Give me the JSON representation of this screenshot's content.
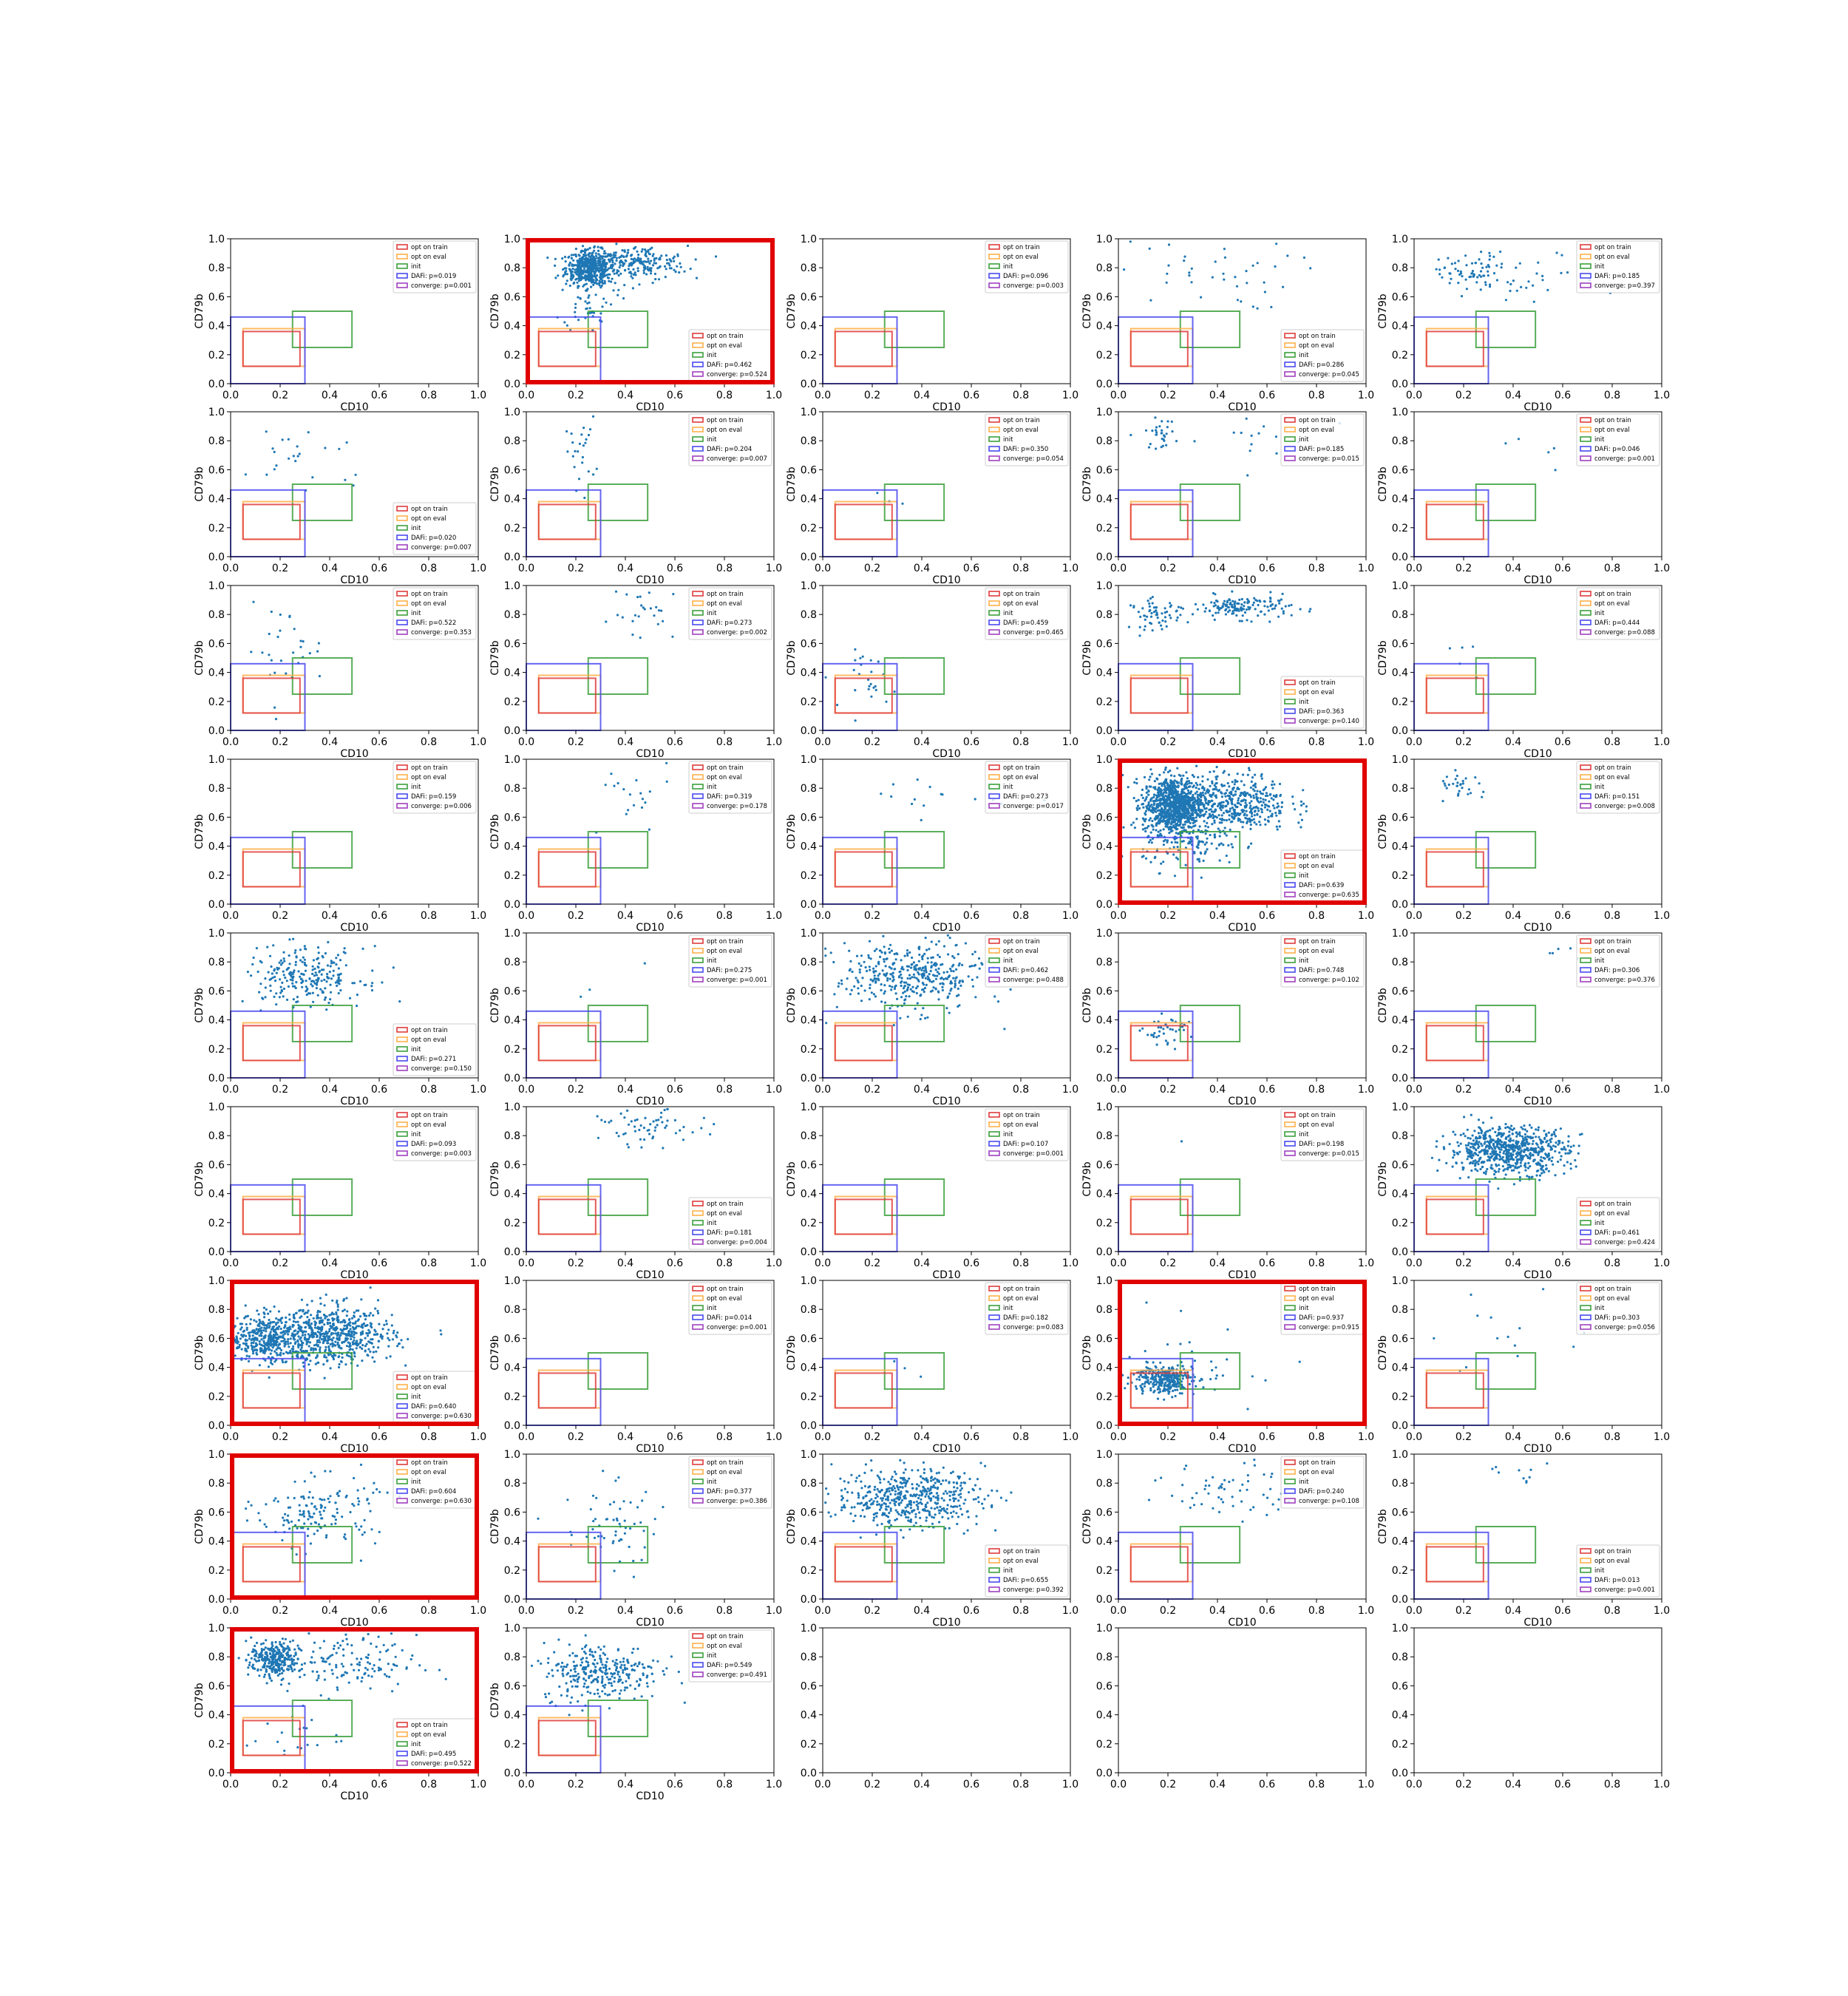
{
  "figure": {
    "background": "#ffffff"
  },
  "colors": {
    "scatter": "#1f77b4",
    "opt_on_train": "#e03c3c",
    "opt_on_eval": "#ffb04a",
    "init": "#3ca03c",
    "dafi": "#4a4af0",
    "converge": "#a040c0",
    "highlight": "#e00000"
  },
  "legend_labels": {
    "opt_on_train": "opt on train",
    "opt_on_eval": "opt on eval",
    "init": "init",
    "dafi_prefix": "DAFi: p=",
    "converge_prefix": "converge: p="
  },
  "chart_data": {
    "type": "scatter",
    "rows": 9,
    "cols": 5,
    "xlabel": "CD10",
    "ylabel": "CD79b",
    "xlim": [
      0,
      1
    ],
    "ylim": [
      0,
      1
    ],
    "ticks": [
      "0.0",
      "0.2",
      "0.4",
      "0.6",
      "0.8",
      "1.0"
    ],
    "gates": {
      "opt_on_train": [
        0.05,
        0.12,
        0.28,
        0.36
      ],
      "opt_on_eval": [
        0.05,
        0.12,
        0.3,
        0.38
      ],
      "init": [
        0.25,
        0.25,
        0.49,
        0.5
      ],
      "dafi": [
        0.0,
        0.0,
        0.3,
        0.46
      ]
    },
    "panels": [
      {
        "dafi": "0.019",
        "converge": "0.001",
        "legend": "top",
        "highlight": false,
        "clusters": []
      },
      {
        "dafi": "0.462",
        "converge": "0.524",
        "legend": "bottom",
        "highlight": true,
        "clusters": [
          [
            0.26,
            0.8,
            0.05,
            0.06,
            500
          ],
          [
            0.45,
            0.83,
            0.1,
            0.06,
            200
          ],
          [
            0.25,
            0.6,
            0.05,
            0.12,
            60
          ]
        ]
      },
      {
        "dafi": "0.096",
        "converge": "0.003",
        "legend": "top",
        "highlight": false,
        "clusters": []
      },
      {
        "dafi": "0.286",
        "converge": "0.045",
        "legend": "bottom",
        "highlight": false,
        "clusters": [
          [
            0.35,
            0.75,
            0.18,
            0.12,
            40
          ]
        ]
      },
      {
        "dafi": "0.185",
        "converge": "0.397",
        "legend": "top",
        "highlight": false,
        "clusters": [
          [
            0.22,
            0.76,
            0.06,
            0.07,
            60
          ],
          [
            0.45,
            0.72,
            0.15,
            0.1,
            35
          ]
        ]
      },
      {
        "dafi": "0.020",
        "converge": "0.007",
        "legend": "bottom",
        "highlight": false,
        "clusters": [
          [
            0.3,
            0.7,
            0.15,
            0.15,
            25
          ]
        ]
      },
      {
        "dafi": "0.204",
        "converge": "0.007",
        "legend": "top",
        "highlight": false,
        "clusters": [
          [
            0.22,
            0.72,
            0.03,
            0.12,
            25
          ]
        ]
      },
      {
        "dafi": "0.350",
        "converge": "0.054",
        "legend": "top",
        "highlight": false,
        "clusters": [
          [
            0.25,
            0.4,
            0.05,
            0.05,
            3
          ]
        ]
      },
      {
        "dafi": "0.185",
        "converge": "0.015",
        "legend": "top",
        "highlight": false,
        "clusters": [
          [
            0.17,
            0.85,
            0.03,
            0.05,
            30
          ],
          [
            0.5,
            0.8,
            0.15,
            0.1,
            15
          ]
        ]
      },
      {
        "dafi": "0.046",
        "converge": "0.001",
        "legend": "top",
        "highlight": false,
        "clusters": [
          [
            0.5,
            0.8,
            0.2,
            0.1,
            5
          ]
        ]
      },
      {
        "dafi": "0.522",
        "converge": "0.353",
        "legend": "top",
        "highlight": false,
        "clusters": [
          [
            0.22,
            0.55,
            0.08,
            0.15,
            30
          ]
        ]
      },
      {
        "dafi": "0.273",
        "converge": "0.002",
        "legend": "top",
        "highlight": false,
        "clusters": [
          [
            0.5,
            0.8,
            0.08,
            0.1,
            25
          ]
        ]
      },
      {
        "dafi": "0.459",
        "converge": "0.465",
        "legend": "top",
        "highlight": false,
        "clusters": [
          [
            0.2,
            0.35,
            0.05,
            0.1,
            25
          ]
        ]
      },
      {
        "dafi": "0.363",
        "converge": "0.140",
        "legend": "bottom",
        "highlight": false,
        "clusters": [
          [
            0.15,
            0.8,
            0.05,
            0.05,
            60
          ],
          [
            0.5,
            0.85,
            0.1,
            0.04,
            150
          ]
        ]
      },
      {
        "dafi": "0.444",
        "converge": "0.088",
        "legend": "top",
        "highlight": false,
        "clusters": [
          [
            0.2,
            0.5,
            0.05,
            0.1,
            5
          ]
        ]
      },
      {
        "dafi": "0.159",
        "converge": "0.006",
        "legend": "top",
        "highlight": false,
        "clusters": []
      },
      {
        "dafi": "0.319",
        "converge": "0.178",
        "legend": "top",
        "highlight": false,
        "clusters": [
          [
            0.4,
            0.7,
            0.1,
            0.15,
            20
          ]
        ]
      },
      {
        "dafi": "0.273",
        "converge": "0.017",
        "legend": "top",
        "highlight": false,
        "clusters": [
          [
            0.45,
            0.75,
            0.15,
            0.08,
            15
          ]
        ]
      },
      {
        "dafi": "0.639",
        "converge": "0.635",
        "legend": "bottom",
        "highlight": true,
        "clusters": [
          [
            0.22,
            0.68,
            0.06,
            0.1,
            900
          ],
          [
            0.45,
            0.7,
            0.12,
            0.1,
            500
          ],
          [
            0.3,
            0.4,
            0.1,
            0.08,
            100
          ]
        ]
      },
      {
        "dafi": "0.151",
        "converge": "0.008",
        "legend": "top",
        "highlight": false,
        "clusters": [
          [
            0.2,
            0.8,
            0.05,
            0.05,
            30
          ]
        ]
      },
      {
        "dafi": "0.271",
        "converge": "0.150",
        "legend": "bottom",
        "highlight": false,
        "clusters": [
          [
            0.3,
            0.7,
            0.12,
            0.1,
            250
          ]
        ]
      },
      {
        "dafi": "0.275",
        "converge": "0.001",
        "legend": "top",
        "highlight": false,
        "clusters": [
          [
            0.4,
            0.7,
            0.1,
            0.1,
            3
          ]
        ]
      },
      {
        "dafi": "0.462",
        "converge": "0.488",
        "legend": "top",
        "highlight": false,
        "clusters": [
          [
            0.35,
            0.7,
            0.15,
            0.12,
            400
          ]
        ]
      },
      {
        "dafi": "0.748",
        "converge": "0.102",
        "legend": "top",
        "highlight": false,
        "clusters": [
          [
            0.2,
            0.32,
            0.05,
            0.05,
            40
          ]
        ]
      },
      {
        "dafi": "0.306",
        "converge": "0.376",
        "legend": "top",
        "highlight": false,
        "clusters": [
          [
            0.6,
            0.88,
            0.05,
            0.05,
            5
          ]
        ]
      },
      {
        "dafi": "0.093",
        "converge": "0.003",
        "legend": "top",
        "highlight": false,
        "clusters": []
      },
      {
        "dafi": "0.181",
        "converge": "0.004",
        "legend": "bottom",
        "highlight": false,
        "clusters": [
          [
            0.5,
            0.85,
            0.1,
            0.06,
            60
          ]
        ]
      },
      {
        "dafi": "0.107",
        "converge": "0.001",
        "legend": "top",
        "highlight": false,
        "clusters": []
      },
      {
        "dafi": "0.198",
        "converge": "0.015",
        "legend": "top",
        "highlight": false,
        "clusters": [
          [
            0.3,
            0.8,
            0.05,
            0.05,
            1
          ]
        ]
      },
      {
        "dafi": "0.461",
        "converge": "0.424",
        "legend": "bottom",
        "highlight": false,
        "clusters": [
          [
            0.38,
            0.7,
            0.12,
            0.08,
            700
          ]
        ]
      },
      {
        "dafi": "0.640",
        "converge": "0.630",
        "legend": "bottom",
        "highlight": true,
        "clusters": [
          [
            0.15,
            0.6,
            0.08,
            0.08,
            400
          ],
          [
            0.42,
            0.62,
            0.12,
            0.1,
            600
          ]
        ]
      },
      {
        "dafi": "0.014",
        "converge": "0.001",
        "legend": "top",
        "highlight": false,
        "clusters": []
      },
      {
        "dafi": "0.182",
        "converge": "0.083",
        "legend": "top",
        "highlight": false,
        "clusters": [
          [
            0.3,
            0.4,
            0.05,
            0.05,
            3
          ]
        ]
      },
      {
        "dafi": "0.937",
        "converge": "0.915",
        "legend": "top",
        "highlight": true,
        "clusters": [
          [
            0.18,
            0.32,
            0.06,
            0.05,
            300
          ],
          [
            0.35,
            0.4,
            0.15,
            0.15,
            30
          ]
        ]
      },
      {
        "dafi": "0.303",
        "converge": "0.056",
        "legend": "top",
        "highlight": false,
        "clusters": [
          [
            0.4,
            0.6,
            0.15,
            0.15,
            15
          ]
        ]
      },
      {
        "dafi": "0.604",
        "converge": "0.630",
        "legend": "top",
        "highlight": true,
        "clusters": [
          [
            0.35,
            0.6,
            0.12,
            0.12,
            150
          ]
        ]
      },
      {
        "dafi": "0.377",
        "converge": "0.386",
        "legend": "top",
        "highlight": false,
        "clusters": [
          [
            0.35,
            0.5,
            0.1,
            0.15,
            60
          ]
        ]
      },
      {
        "dafi": "0.655",
        "converge": "0.392",
        "legend": "bottom",
        "highlight": false,
        "clusters": [
          [
            0.35,
            0.7,
            0.15,
            0.1,
            500
          ]
        ]
      },
      {
        "dafi": "0.240",
        "converge": "0.108",
        "legend": "top",
        "highlight": false,
        "clusters": [
          [
            0.45,
            0.75,
            0.12,
            0.1,
            60
          ]
        ]
      },
      {
        "dafi": "0.013",
        "converge": "0.001",
        "legend": "bottom",
        "highlight": false,
        "clusters": [
          [
            0.45,
            0.88,
            0.08,
            0.05,
            10
          ]
        ]
      },
      {
        "dafi": "0.495",
        "converge": "0.522",
        "legend": "bottom",
        "highlight": true,
        "clusters": [
          [
            0.18,
            0.78,
            0.05,
            0.06,
            300
          ],
          [
            0.45,
            0.75,
            0.15,
            0.1,
            150
          ],
          [
            0.25,
            0.25,
            0.1,
            0.1,
            20
          ]
        ]
      },
      {
        "dafi": "0.549",
        "converge": "0.491",
        "legend": "top",
        "highlight": false,
        "clusters": [
          [
            0.3,
            0.7,
            0.12,
            0.1,
            300
          ]
        ]
      },
      {
        "empty": true
      },
      {
        "empty": true
      },
      {
        "empty": true
      }
    ]
  }
}
